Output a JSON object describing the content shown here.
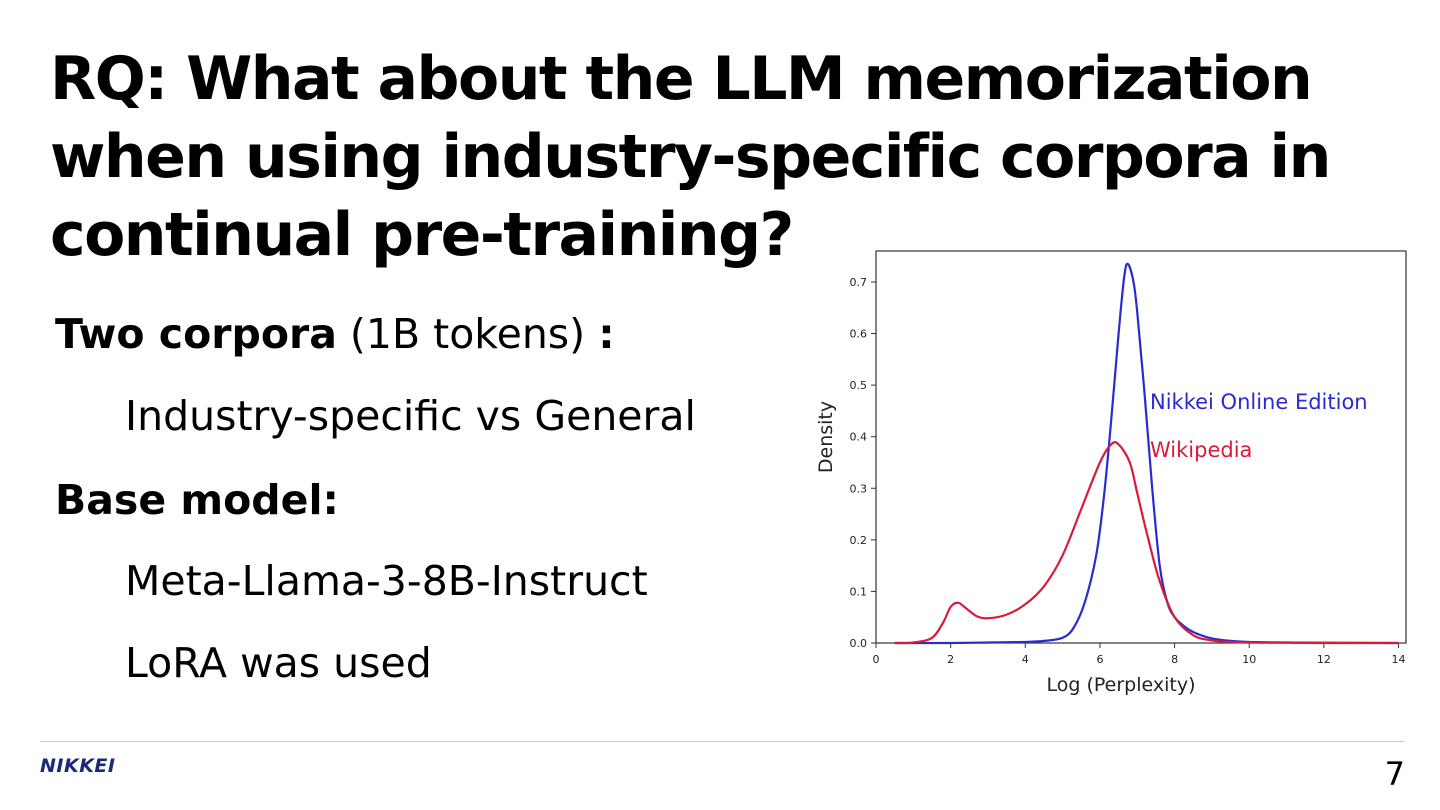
{
  "slide": {
    "title_line1": "RQ: What about the LLM memorization",
    "title_line2": "when using industry-specific corpora in",
    "title_line3": "continual pre-training?",
    "corpora_label": "Two corpora",
    "corpora_detail": " (1B tokens) ",
    "corpora_colon": ":",
    "corpora_item": "Industry-specific vs General",
    "model_label": "Base model:",
    "model_item1": "Meta-Llama-3-8B-Instruct",
    "model_item2": "LoRA was used",
    "logo": "NIKKEI",
    "page_number": "7"
  },
  "chart_data": {
    "type": "line",
    "xlabel": "Log (Perplexity)",
    "ylabel": "Density",
    "xlim": [
      0,
      14.2
    ],
    "ylim": [
      0,
      0.76
    ],
    "xticks": [
      0,
      2,
      4,
      6,
      8,
      10,
      12,
      14
    ],
    "yticks": [
      0.0,
      0.1,
      0.2,
      0.3,
      0.4,
      0.5,
      0.6,
      0.7
    ],
    "grid": false,
    "legend": "right, inline labels",
    "series": [
      {
        "name": "Nikkei Online Edition",
        "color": "#2a2ad0",
        "x": [
          0.5,
          2,
          3,
          4,
          4.5,
          5,
          5.3,
          5.6,
          5.9,
          6.1,
          6.3,
          6.5,
          6.65,
          6.75,
          6.9,
          7.0,
          7.2,
          7.4,
          7.6,
          7.8,
          8.0,
          8.3,
          8.6,
          9.0,
          9.5,
          10,
          11,
          12,
          14
        ],
        "y": [
          0,
          0,
          0.001,
          0.002,
          0.004,
          0.01,
          0.03,
          0.08,
          0.17,
          0.28,
          0.43,
          0.6,
          0.71,
          0.735,
          0.7,
          0.64,
          0.48,
          0.3,
          0.15,
          0.08,
          0.05,
          0.03,
          0.018,
          0.009,
          0.004,
          0.002,
          0.001,
          0.0005,
          0
        ]
      },
      {
        "name": "Wikipedia",
        "color": "#d81b3a",
        "x": [
          0.5,
          1.0,
          1.5,
          1.8,
          2.0,
          2.2,
          2.4,
          2.7,
          3.0,
          3.5,
          4.0,
          4.5,
          5.0,
          5.5,
          6.0,
          6.3,
          6.5,
          6.8,
          7.0,
          7.3,
          7.6,
          8.0,
          8.5,
          9.0,
          9.5,
          10,
          11,
          12,
          14
        ],
        "y": [
          0,
          0.001,
          0.01,
          0.04,
          0.07,
          0.078,
          0.068,
          0.052,
          0.048,
          0.055,
          0.075,
          0.11,
          0.17,
          0.26,
          0.35,
          0.385,
          0.385,
          0.35,
          0.29,
          0.2,
          0.12,
          0.05,
          0.015,
          0.005,
          0.002,
          0.001,
          0.0005,
          0,
          0
        ]
      }
    ]
  }
}
